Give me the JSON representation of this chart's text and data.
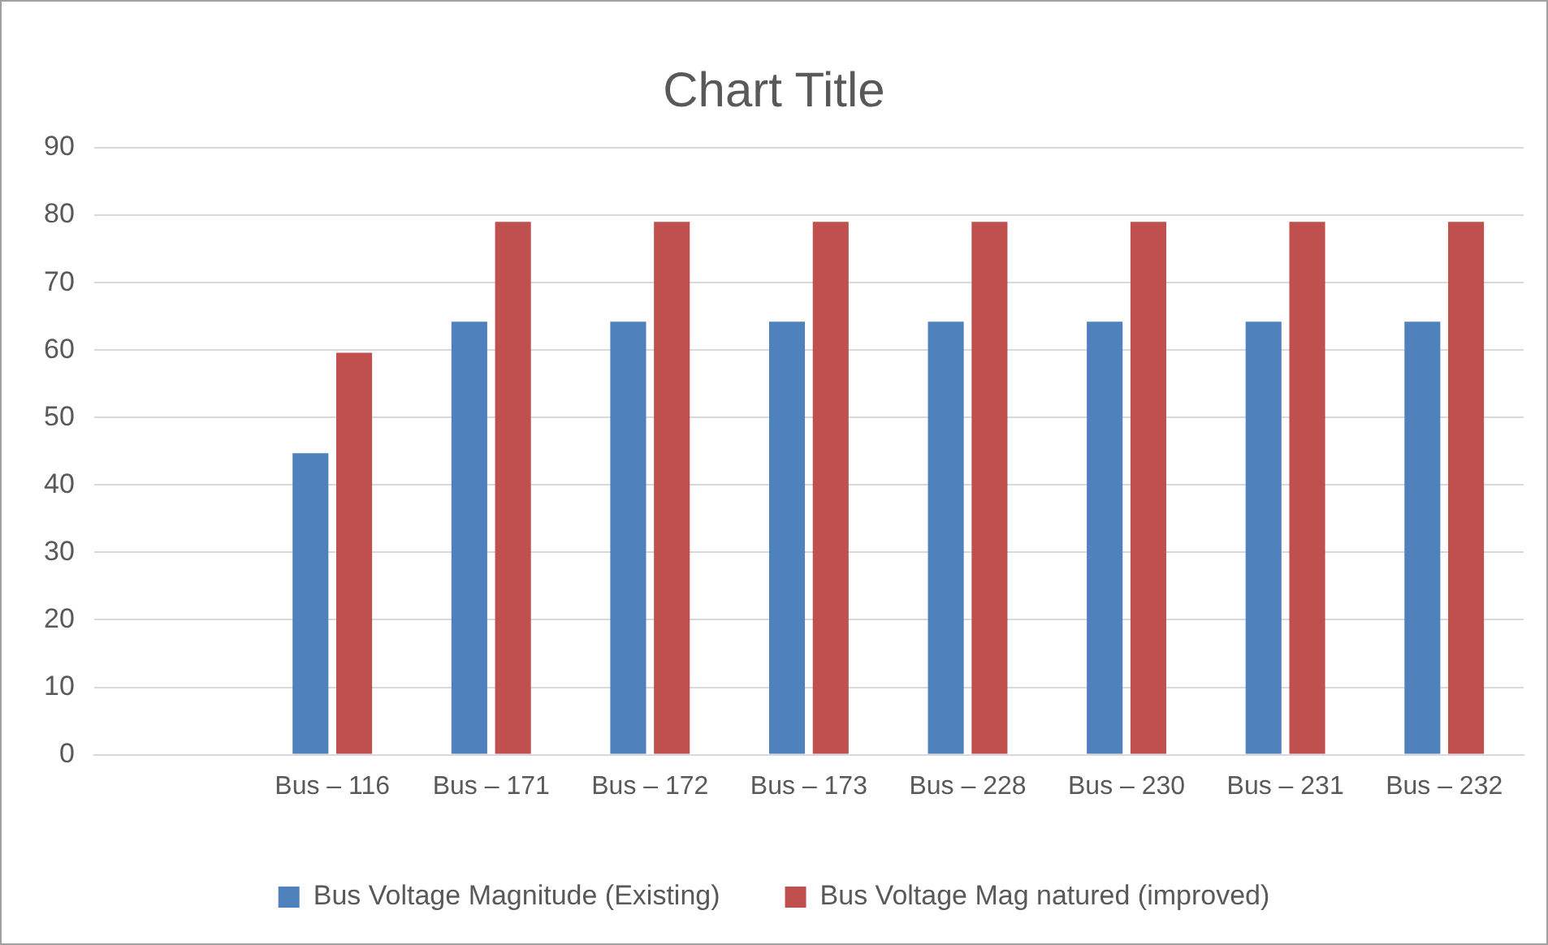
{
  "chart_data": {
    "type": "bar",
    "title": "Chart Title",
    "categories": [
      null,
      "Bus – 116",
      "Bus – 171",
      "Bus – 172",
      "Bus – 173",
      "Bus – 228",
      "Bus – 230",
      "Bus – 231",
      "Bus – 232"
    ],
    "series": [
      {
        "name": "Bus Voltage Magnitude (Existing)",
        "color": "#4f81bd",
        "values": [
          null,
          44.7,
          64.2,
          64.2,
          64.2,
          64.2,
          64.2,
          64.2,
          64.2
        ]
      },
      {
        "name": "Bus Voltage Mag natured (improved)",
        "color": "#c0504d",
        "values": [
          null,
          59.6,
          79,
          79,
          79,
          79,
          79,
          79,
          79
        ]
      }
    ],
    "ylim": [
      0,
      90
    ],
    "yticks": [
      0,
      10,
      20,
      30,
      40,
      50,
      60,
      70,
      80,
      90
    ],
    "grid": "y",
    "legend": "bottom"
  }
}
